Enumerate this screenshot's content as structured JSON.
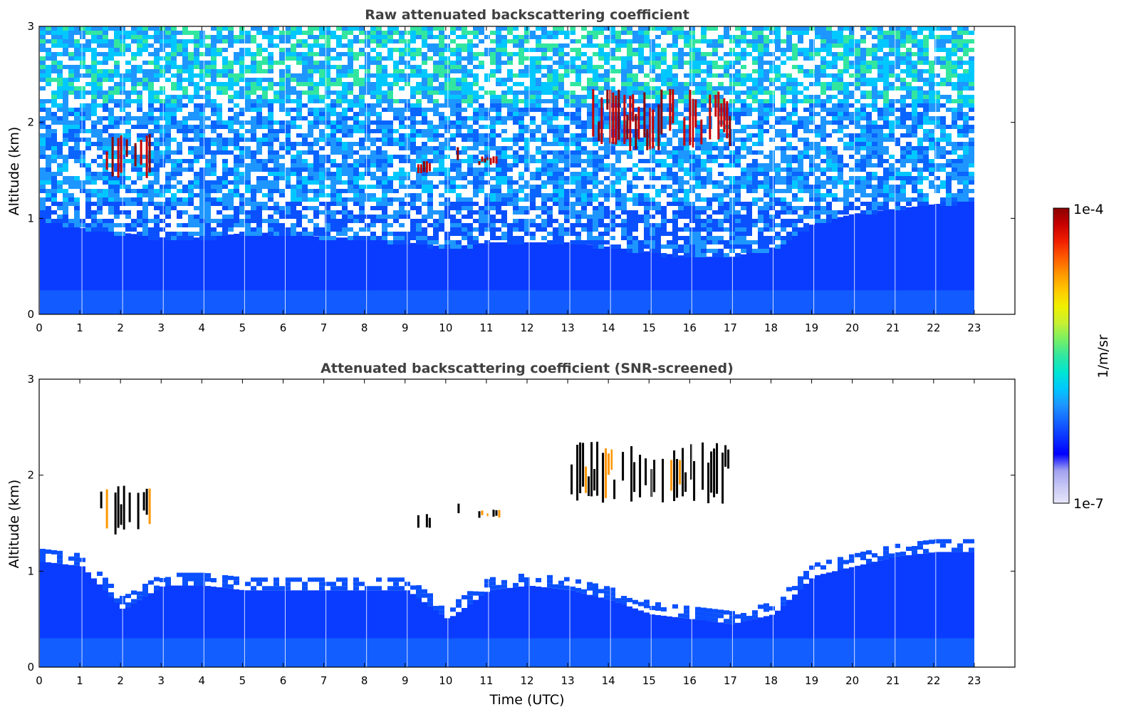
{
  "chart_data": [
    {
      "type": "heatmap",
      "title": "Raw attenuated backscattering coefficient",
      "xlabel": "",
      "ylabel": "Altitude (km)",
      "xlim": [
        0,
        24
      ],
      "ylim": [
        0,
        3
      ],
      "x_ticks": [
        "0",
        "1",
        "2",
        "3",
        "4",
        "5",
        "6",
        "7",
        "8",
        "9",
        "10",
        "11",
        "12",
        "13",
        "14",
        "15",
        "16",
        "17",
        "18",
        "19",
        "20",
        "21",
        "22",
        "23"
      ],
      "y_ticks": [
        "0",
        "1",
        "2",
        "3"
      ],
      "data_extent_hours": [
        0,
        23
      ],
      "colorscale": "log",
      "features": [
        {
          "kind": "cloud",
          "x_range": [
            1.5,
            2.7
          ],
          "alt_range": [
            1.4,
            1.9
          ],
          "level": "high"
        },
        {
          "kind": "cloud",
          "x_range": [
            9.3,
            9.6
          ],
          "alt_range": [
            1.45,
            1.6
          ],
          "level": "high"
        },
        {
          "kind": "cloud",
          "x_range": [
            10.2,
            10.3
          ],
          "alt_range": [
            1.6,
            1.75
          ],
          "level": "high"
        },
        {
          "kind": "cloud",
          "x_range": [
            10.8,
            11.3
          ],
          "alt_range": [
            1.55,
            1.65
          ],
          "level": "high"
        },
        {
          "kind": "cloud",
          "x_range": [
            13.6,
            17.0
          ],
          "alt_range": [
            1.7,
            2.35
          ],
          "level": "high"
        },
        {
          "kind": "boundary_layer",
          "x_range": [
            0,
            23
          ],
          "top_alt_km": [
            1.0,
            0.9,
            0.85,
            0.8,
            0.8,
            0.85,
            0.85,
            0.8,
            0.8,
            0.75,
            0.7,
            0.75,
            0.75,
            0.75,
            0.7,
            0.65,
            0.6,
            0.6,
            0.7,
            0.95,
            1.05,
            1.1,
            1.15,
            1.2
          ]
        }
      ]
    },
    {
      "type": "heatmap",
      "title": "Attenuated backscattering coefficient (SNR-screened)",
      "xlabel": "Time (UTC)",
      "ylabel": "Altitude (km)",
      "xlim": [
        0,
        24
      ],
      "ylim": [
        0,
        3
      ],
      "x_ticks": [
        "0",
        "1",
        "2",
        "3",
        "4",
        "5",
        "6",
        "7",
        "8",
        "9",
        "10",
        "11",
        "12",
        "13",
        "14",
        "15",
        "16",
        "17",
        "18",
        "19",
        "20",
        "21",
        "22",
        "23"
      ],
      "y_ticks": [
        "0",
        "1",
        "2",
        "3"
      ],
      "data_extent_hours": [
        0,
        23
      ],
      "colorscale": "log",
      "boundary_layer_top_km": [
        1.1,
        1.05,
        0.6,
        0.85,
        0.85,
        0.8,
        0.8,
        0.8,
        0.8,
        0.8,
        0.5,
        0.8,
        0.85,
        0.8,
        0.7,
        0.55,
        0.5,
        0.45,
        0.55,
        0.95,
        1.05,
        1.15,
        1.2,
        1.2
      ],
      "clouds": [
        {
          "x_range": [
            1.5,
            2.7
          ],
          "alt_range": [
            1.38,
            1.9
          ]
        },
        {
          "x_range": [
            9.3,
            9.6
          ],
          "alt_range": [
            1.45,
            1.62
          ]
        },
        {
          "x_range": [
            10.15,
            10.3
          ],
          "alt_range": [
            1.6,
            1.75
          ]
        },
        {
          "x_range": [
            10.8,
            11.3
          ],
          "alt_range": [
            1.55,
            1.65
          ]
        },
        {
          "x_range": [
            13.0,
            17.0
          ],
          "alt_range": [
            1.7,
            2.35
          ]
        }
      ]
    }
  ],
  "colorbar": {
    "max_label": "1e-4",
    "min_label": "1e-7",
    "unit_label": "1/m/sr",
    "colors": [
      "#e6e6fa",
      "#c8c8f5",
      "#a0a0f0",
      "#0000ff",
      "#0a32ff",
      "#1464ff",
      "#1e96ff",
      "#00c8ff",
      "#00e6d2",
      "#32e6a0",
      "#78f064",
      "#c8f032",
      "#f0f000",
      "#ffc800",
      "#ff9600",
      "#ff5a00",
      "#f01e00",
      "#c80000",
      "#8b0000"
    ]
  }
}
